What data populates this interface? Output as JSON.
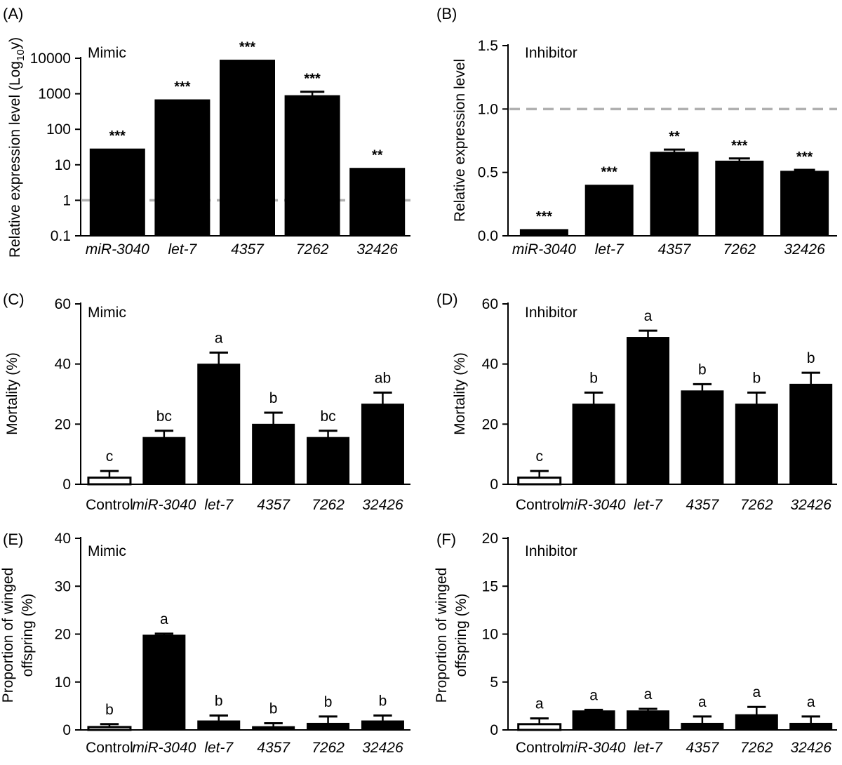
{
  "colors": {
    "bar_fill": "#000000",
    "control_fill": "#ffffff",
    "reference_line": "#b0b0b0"
  },
  "chart_data": [
    {
      "panel": "(A)",
      "type": "bar",
      "inset": "Mimic",
      "ylabel_pre": "Relative expression level (Log",
      "ylabel_sub": "10",
      "ylabel_post": "y)",
      "yscale": "log",
      "ylim": [
        0.1,
        10000
      ],
      "yticks": [
        0.1,
        1,
        10,
        100,
        1000,
        10000
      ],
      "ytick_labels": [
        "0.1",
        "1",
        "10",
        "100",
        "1000",
        "10000"
      ],
      "categories": [
        "miR-3040",
        "let-7",
        "4357",
        "7262",
        "32426"
      ],
      "italic": [
        true,
        true,
        true,
        true,
        true
      ],
      "values": [
        28,
        680,
        8900,
        890,
        8
      ],
      "errors": [
        0,
        0,
        0,
        250,
        0
      ],
      "annotations": [
        "***",
        "***",
        "***",
        "***",
        "**"
      ],
      "reference_line": 1
    },
    {
      "panel": "(B)",
      "type": "bar",
      "inset": "Inhibitor",
      "ylabel": "Relative expression level",
      "yscale": "linear",
      "ylim": [
        0,
        1.5
      ],
      "yticks": [
        0,
        0.5,
        1,
        1.5
      ],
      "ytick_labels": [
        "0.0",
        "0.5",
        "1.0",
        "1.5"
      ],
      "categories": [
        "miR-3040",
        "let-7",
        "4357",
        "7262",
        "32426"
      ],
      "italic": [
        true,
        true,
        true,
        true,
        true
      ],
      "values": [
        0.05,
        0.4,
        0.66,
        0.59,
        0.51
      ],
      "errors": [
        0,
        0,
        0.02,
        0.02,
        0.01
      ],
      "annotations": [
        "***",
        "***",
        "**",
        "***",
        "***"
      ],
      "reference_line": 1.0
    },
    {
      "panel": "(C)",
      "type": "bar",
      "inset": "Mimic",
      "ylabel": "Mortality (%)",
      "yscale": "linear",
      "ylim": [
        0,
        60
      ],
      "yticks": [
        0,
        20,
        40,
        60
      ],
      "ytick_labels": [
        "0",
        "20",
        "40",
        "60"
      ],
      "categories": [
        "Control",
        "miR-3040",
        "let-7",
        "4357",
        "7262",
        "32426"
      ],
      "italic": [
        false,
        true,
        true,
        true,
        true,
        true
      ],
      "values": [
        2.2,
        15.6,
        40.0,
        20.0,
        15.6,
        26.7
      ],
      "errors": [
        2.2,
        2.2,
        3.8,
        3.8,
        2.2,
        3.8
      ],
      "annotations": [
        "c",
        "bc",
        "a",
        "b",
        "bc",
        "ab"
      ]
    },
    {
      "panel": "(D)",
      "type": "bar",
      "inset": "Inhibitor",
      "ylabel": "Mortality (%)",
      "yscale": "linear",
      "ylim": [
        0,
        60
      ],
      "yticks": [
        0,
        20,
        40,
        60
      ],
      "ytick_labels": [
        "0",
        "20",
        "40",
        "60"
      ],
      "categories": [
        "Control",
        "miR-3040",
        "let-7",
        "4357",
        "7262",
        "32426"
      ],
      "italic": [
        false,
        true,
        true,
        true,
        true,
        true
      ],
      "values": [
        2.2,
        26.7,
        48.9,
        31.1,
        26.7,
        33.3
      ],
      "errors": [
        2.2,
        3.8,
        2.2,
        2.2,
        3.8,
        3.8
      ],
      "annotations": [
        "c",
        "b",
        "a",
        "b",
        "b",
        "b"
      ]
    },
    {
      "panel": "(E)",
      "type": "bar",
      "inset": "Mimic",
      "ylabel_lines": [
        "Proportion of winged",
        "offspring (%)"
      ],
      "yscale": "linear",
      "ylim": [
        0,
        40
      ],
      "yticks": [
        0,
        10,
        20,
        30,
        40
      ],
      "ytick_labels": [
        "0",
        "10",
        "20",
        "30",
        "40"
      ],
      "categories": [
        "Control",
        "miR-3040",
        "let-7",
        "4357",
        "7262",
        "32426"
      ],
      "italic": [
        false,
        true,
        true,
        true,
        true,
        true
      ],
      "values": [
        0.6,
        19.8,
        1.9,
        0.7,
        1.4,
        1.9
      ],
      "errors": [
        0.6,
        0.3,
        1.1,
        0.7,
        1.4,
        1.1
      ],
      "annotations": [
        "b",
        "a",
        "b",
        "b",
        "b",
        "b"
      ]
    },
    {
      "panel": "(F)",
      "type": "bar",
      "inset": "Inhibitor",
      "ylabel_lines": [
        "Proportion of winged",
        "offspring (%)"
      ],
      "yscale": "linear",
      "ylim": [
        0,
        20
      ],
      "yticks": [
        0,
        5,
        10,
        15,
        20
      ],
      "ytick_labels": [
        "0",
        "5",
        "10",
        "15",
        "20"
      ],
      "categories": [
        "Control",
        "miR-3040",
        "let-7",
        "4357",
        "7262",
        "32426"
      ],
      "italic": [
        false,
        true,
        true,
        true,
        true,
        true
      ],
      "values": [
        0.6,
        2.0,
        2.0,
        0.7,
        1.6,
        0.7
      ],
      "errors": [
        0.6,
        0.1,
        0.2,
        0.7,
        0.8,
        0.7
      ],
      "annotations": [
        "a",
        "a",
        "a",
        "a",
        "a",
        "a"
      ]
    }
  ]
}
